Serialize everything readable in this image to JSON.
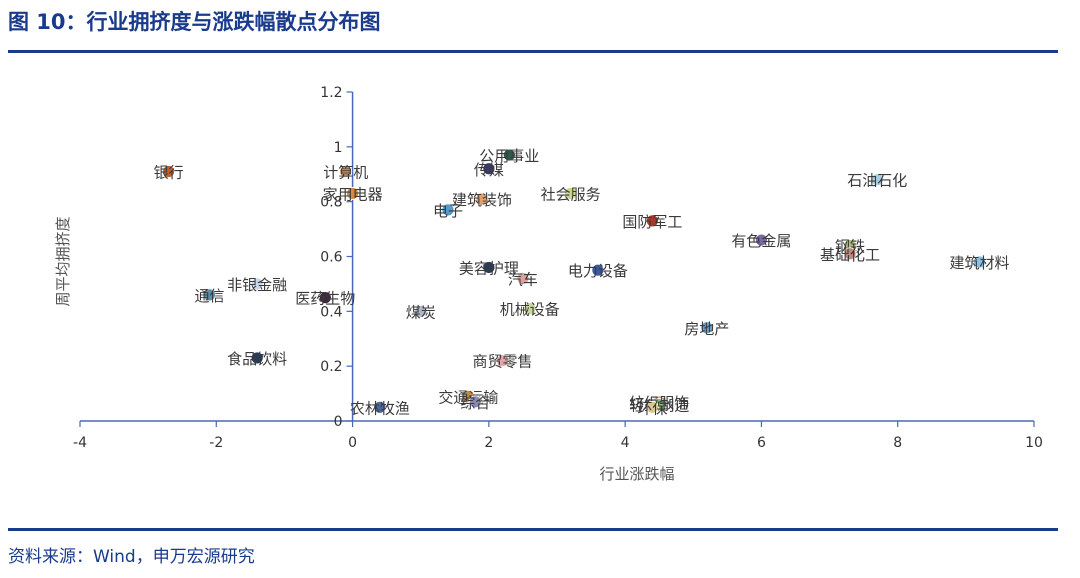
{
  "header": {
    "title": "图 10：行业拥挤度与涨跌幅散点分布图"
  },
  "footer": {
    "source": "资料来源：Wind，申万宏源研究"
  },
  "colors": {
    "accent": "#1a3a8c",
    "axis": "#4a66b8"
  },
  "chart_data": {
    "type": "scatter",
    "title": "",
    "xlabel": "行业涨跌幅",
    "ylabel": "周平均拥挤度",
    "xlim": [
      -4,
      10
    ],
    "ylim": [
      0,
      1.2
    ],
    "xticks": [
      "-4",
      "-2",
      "0",
      "2",
      "4",
      "6",
      "8",
      "10"
    ],
    "yticks": [
      "0",
      "0.2",
      "0.4",
      "0.6",
      "0.8",
      "1",
      "1.2"
    ],
    "points": [
      {
        "label": "银行",
        "x": -2.7,
        "y": 0.91,
        "color": "#c0602a"
      },
      {
        "label": "计算机",
        "x": -0.1,
        "y": 0.91,
        "color": "#d9a070"
      },
      {
        "label": "家用电器",
        "x": 0.0,
        "y": 0.83,
        "color": "#d98a3a"
      },
      {
        "label": "公用事业",
        "x": 2.3,
        "y": 0.97,
        "color": "#2f5a4a"
      },
      {
        "label": "传媒",
        "x": 2.0,
        "y": 0.92,
        "color": "#3a3a6a"
      },
      {
        "label": "建筑装饰",
        "x": 1.9,
        "y": 0.81,
        "color": "#e0a070"
      },
      {
        "label": "电子",
        "x": 1.4,
        "y": 0.77,
        "color": "#5a9ac8"
      },
      {
        "label": "社会服务",
        "x": 3.2,
        "y": 0.83,
        "color": "#c8d890"
      },
      {
        "label": "石油石化",
        "x": 7.7,
        "y": 0.88,
        "color": "#a8d0e0"
      },
      {
        "label": "国防军工",
        "x": 4.4,
        "y": 0.73,
        "color": "#a8382a"
      },
      {
        "label": "有色金属",
        "x": 6.0,
        "y": 0.66,
        "color": "#7a6aa0"
      },
      {
        "label": "钢铁",
        "x": 7.3,
        "y": 0.64,
        "color": "#a8c070"
      },
      {
        "label": "基础化工",
        "x": 7.3,
        "y": 0.61,
        "color": "#c08a7a"
      },
      {
        "label": "建筑材料",
        "x": 9.2,
        "y": 0.58,
        "color": "#8ac0e0"
      },
      {
        "label": "美容护理",
        "x": 2.0,
        "y": 0.56,
        "color": "#2a3a5a"
      },
      {
        "label": "汽车",
        "x": 2.5,
        "y": 0.52,
        "color": "#e0a0a0"
      },
      {
        "label": "电力设备",
        "x": 3.6,
        "y": 0.55,
        "color": "#3a5a9a"
      },
      {
        "label": "非银金融",
        "x": -1.4,
        "y": 0.5,
        "color": "#c8d8e8"
      },
      {
        "label": "通信",
        "x": -2.1,
        "y": 0.46,
        "color": "#5a90b0"
      },
      {
        "label": "医药生物",
        "x": -0.4,
        "y": 0.45,
        "color": "#3a2a3a"
      },
      {
        "label": "煤炭",
        "x": 1.0,
        "y": 0.4,
        "color": "#b0b8c8"
      },
      {
        "label": "机械设备",
        "x": 2.6,
        "y": 0.41,
        "color": "#c8d8a0"
      },
      {
        "label": "房地产",
        "x": 5.2,
        "y": 0.34,
        "color": "#6aa0c8"
      },
      {
        "label": "食品饮料",
        "x": -1.4,
        "y": 0.23,
        "color": "#2a3a5a"
      },
      {
        "label": "商贸零售",
        "x": 2.2,
        "y": 0.22,
        "color": "#e0a8a8"
      },
      {
        "label": "交通运输",
        "x": 1.7,
        "y": 0.09,
        "color": "#c88a40"
      },
      {
        "label": "综合",
        "x": 1.8,
        "y": 0.07,
        "color": "#8a8ab0"
      },
      {
        "label": "农林牧渔",
        "x": 0.4,
        "y": 0.05,
        "color": "#4a6aa0"
      },
      {
        "label": "纺织服饰",
        "x": 4.5,
        "y": 0.07,
        "color": "#e0b080"
      },
      {
        "label": "轻工制造",
        "x": 4.5,
        "y": 0.06,
        "color": "#8ac070"
      },
      {
        "label": "环保",
        "x": 4.4,
        "y": 0.05,
        "color": "#d8c890"
      }
    ]
  }
}
